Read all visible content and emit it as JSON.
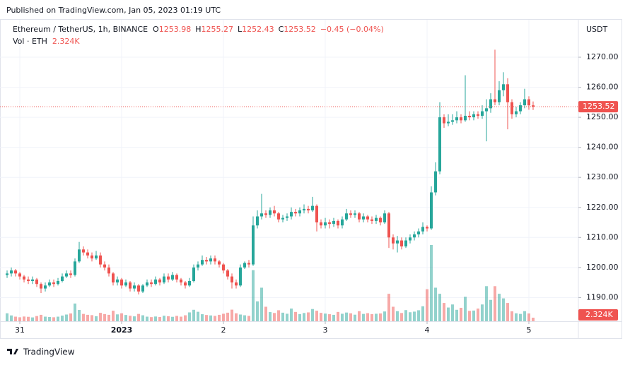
{
  "chart_data": {
    "type": "candlestick",
    "published": "Published on TradingView.com, Jan 05, 2023 01:19 UTC",
    "title": "Ethereum / TetherUS, 1h, BINANCE",
    "ohlc_labels": [
      "O",
      "H",
      "L",
      "C"
    ],
    "change": "−0.45 (−0.04%)",
    "volume_label": "Vol · ETH",
    "volume_value_label": "2.324K",
    "currency": "USDT",
    "brand": "TradingView",
    "up_color": "#26a69a",
    "down_color": "#ef5350",
    "grid": true,
    "xlim": [
      -1.67,
      134.67
    ],
    "ylim": [
      1182.1,
      1282.7
    ],
    "volume_ylim": [
      0,
      100000
    ],
    "xticks": [
      {
        "value": 3,
        "label": "31"
      },
      {
        "value": 27,
        "label": "2023"
      },
      {
        "value": 51,
        "label": "2"
      },
      {
        "value": 75,
        "label": "3"
      },
      {
        "value": 99,
        "label": "4"
      },
      {
        "value": 123,
        "label": "5"
      }
    ],
    "yticks": [
      {
        "value": 1190,
        "label": "1190.00"
      },
      {
        "value": 1200,
        "label": "1200.00"
      },
      {
        "value": 1210,
        "label": "1210.00"
      },
      {
        "value": 1220,
        "label": "1220.00"
      },
      {
        "value": 1230,
        "label": "1230.00"
      },
      {
        "value": 1240,
        "label": "1240.00"
      },
      {
        "value": 1250,
        "label": "1250.00"
      },
      {
        "value": 1260,
        "label": "1260.00"
      },
      {
        "value": 1270,
        "label": "1270.00"
      }
    ],
    "open": [
      1197.5,
      1198,
      1199,
      1198,
      1197,
      1196,
      1195.5,
      1196,
      1194.5,
      1193,
      1194,
      1195,
      1194.5,
      1195.5,
      1197,
      1198,
      1197.5,
      1202,
      1206,
      1205,
      1204,
      1203,
      1204,
      1201,
      1200,
      1198,
      1195,
      1196,
      1194,
      1195,
      1193,
      1194,
      1192,
      1194,
      1195,
      1194.5,
      1196,
      1195,
      1197,
      1196,
      1197.5,
      1196,
      1195,
      1194,
      1195.5,
      1200,
      1201,
      1202.5,
      1202,
      1203,
      1202,
      1201,
      1199,
      1197,
      1195,
      1194,
      1200,
      1201.5,
      1201,
      1214,
      1217,
      1218,
      1217.5,
      1219,
      1218,
      1216,
      1216.5,
      1217,
      1218.5,
      1218,
      1219,
      1219.5,
      1219,
      1220.5,
      1215,
      1214,
      1215,
      1214.5,
      1215.5,
      1214,
      1216,
      1218,
      1217.5,
      1218,
      1216,
      1217,
      1216,
      1215.5,
      1216.5,
      1215,
      1218,
      1210,
      1208,
      1209,
      1207,
      1209,
      1210,
      1211,
      1212,
      1213.5,
      1213,
      1225,
      1232,
      1250,
      1248,
      1248.5,
      1249,
      1250,
      1249,
      1250.5,
      1250,
      1251,
      1250.5,
      1252,
      1253,
      1256,
      1255,
      1259,
      1261,
      1255,
      1251,
      1252,
      1254,
      1256,
      1253.98
    ],
    "high": [
      1199,
      1200,
      1199.5,
      1198.5,
      1197.5,
      1197,
      1197,
      1196.5,
      1195,
      1195,
      1196,
      1196,
      1196.5,
      1198,
      1199,
      1199,
      1203,
      1208.5,
      1207,
      1206,
      1205,
      1205.5,
      1205,
      1202,
      1201,
      1198.5,
      1197,
      1196.5,
      1196,
      1195.5,
      1195,
      1194.5,
      1194.5,
      1196,
      1196,
      1197,
      1196.5,
      1198,
      1198,
      1198.5,
      1198,
      1196.5,
      1195.5,
      1196.5,
      1201,
      1202,
      1204,
      1203.5,
      1204,
      1204,
      1202.5,
      1201.5,
      1199.5,
      1198,
      1196,
      1201,
      1202,
      1202.5,
      1217,
      1219,
      1224.5,
      1219,
      1220,
      1220.5,
      1218.5,
      1217.5,
      1218,
      1220,
      1219.5,
      1220,
      1221,
      1220.5,
      1223.5,
      1221,
      1216,
      1216.5,
      1216,
      1216.5,
      1216,
      1217,
      1219.5,
      1219,
      1219,
      1218.5,
      1218,
      1217.5,
      1217,
      1217.5,
      1217,
      1219,
      1218.5,
      1211,
      1210.5,
      1210,
      1210,
      1211,
      1212,
      1213,
      1215,
      1214,
      1227,
      1235,
      1255,
      1251,
      1251,
      1251,
      1252,
      1251,
      1264,
      1252,
      1252,
      1252,
      1254,
      1256,
      1258,
      1272.5,
      1262,
      1265,
      1263,
      1256,
      1253.5,
      1255,
      1259.5,
      1257,
      1255.27
    ],
    "low": [
      1196.5,
      1197,
      1197,
      1196,
      1195,
      1194.5,
      1194.5,
      1193.5,
      1191.5,
      1192,
      1193.5,
      1193.5,
      1194,
      1195,
      1196.5,
      1196.5,
      1197,
      1201.5,
      1204,
      1203,
      1202,
      1202.5,
      1200,
      1199,
      1197,
      1194,
      1194,
      1193,
      1193.5,
      1192,
      1192,
      1191,
      1191.5,
      1193.5,
      1193.5,
      1194,
      1194,
      1194.5,
      1195,
      1195.5,
      1195,
      1194,
      1193,
      1193.5,
      1195,
      1199,
      1200.5,
      1201,
      1201,
      1201,
      1200,
      1198,
      1196,
      1193,
      1193,
      1193.5,
      1199.5,
      1200,
      1200.5,
      1213,
      1216,
      1216.5,
      1216.5,
      1217,
      1215,
      1215,
      1215.5,
      1216,
      1217,
      1217,
      1218,
      1218,
      1218.5,
      1212,
      1213,
      1213,
      1213,
      1213.5,
      1213,
      1213,
      1215.5,
      1216.5,
      1216.5,
      1215,
      1215,
      1215,
      1214.5,
      1214.5,
      1214,
      1214.5,
      1206.5,
      1206,
      1205,
      1206,
      1206.5,
      1208,
      1209,
      1210,
      1211,
      1212,
      1212.5,
      1224,
      1231,
      1246.5,
      1247,
      1247.5,
      1248,
      1248,
      1248.5,
      1249,
      1249,
      1249.5,
      1249.5,
      1242,
      1251.5,
      1254,
      1254,
      1257,
      1246,
      1249.5,
      1250,
      1251,
      1253,
      1252.5,
      1252.43
    ],
    "close": [
      1198,
      1199,
      1198,
      1197,
      1196,
      1195.5,
      1196,
      1194.5,
      1193,
      1194,
      1195,
      1194.5,
      1195.5,
      1197,
      1198,
      1197.5,
      1202,
      1206,
      1205,
      1204,
      1203,
      1204,
      1201,
      1200,
      1198,
      1195,
      1196,
      1194,
      1195,
      1193,
      1194,
      1192,
      1194,
      1195,
      1194.5,
      1196,
      1195,
      1197,
      1196,
      1197.5,
      1196,
      1195,
      1194,
      1195.5,
      1200,
      1201,
      1202.5,
      1202,
      1203,
      1202,
      1201,
      1199,
      1197,
      1195,
      1194,
      1200,
      1201.5,
      1201,
      1214,
      1217,
      1218,
      1217.5,
      1219,
      1218,
      1216,
      1216.5,
      1217,
      1218.5,
      1218,
      1219,
      1219.5,
      1219,
      1220.5,
      1215,
      1214,
      1215,
      1214.5,
      1215.5,
      1214,
      1216,
      1218,
      1217.5,
      1218,
      1216,
      1217,
      1216,
      1215.5,
      1216.5,
      1215,
      1218,
      1210,
      1208,
      1209,
      1207,
      1209,
      1210,
      1211,
      1212,
      1213.5,
      1213,
      1225,
      1232,
      1250,
      1248,
      1248.5,
      1249,
      1250,
      1249,
      1250.5,
      1250,
      1251,
      1250.5,
      1252,
      1253,
      1256,
      1255,
      1259,
      1261,
      1255,
      1251,
      1252,
      1254,
      1256,
      1253.98,
      1253.52
    ],
    "volume": [
      5200,
      3800,
      3000,
      2600,
      3100,
      2900,
      2500,
      3400,
      4200,
      3000,
      2800,
      2600,
      3000,
      3700,
      4400,
      5100,
      11600,
      7400,
      4800,
      4200,
      4000,
      3300,
      5500,
      4700,
      4200,
      6900,
      4500,
      5200,
      4100,
      3600,
      3200,
      4800,
      3900,
      3000,
      2700,
      3100,
      2800,
      3600,
      3300,
      2900,
      3500,
      3000,
      3900,
      5800,
      7500,
      6200,
      4600,
      4100,
      3800,
      3500,
      4200,
      4900,
      5600,
      7600,
      5200,
      4400,
      3900,
      3500,
      33500,
      13000,
      22000,
      9500,
      6000,
      5400,
      7200,
      5600,
      4900,
      8300,
      6100,
      4700,
      5400,
      5800,
      8000,
      6900,
      5500,
      5000,
      4600,
      4200,
      6100,
      4900,
      5700,
      5200,
      4300,
      6600,
      4800,
      5300,
      4700,
      4900,
      5100,
      6400,
      18000,
      9500,
      6600,
      5400,
      7300,
      5900,
      6300,
      7200,
      9800,
      21000,
      50000,
      22000,
      18000,
      12000,
      9000,
      11000,
      7500,
      8800,
      16000,
      6800,
      7000,
      8300,
      11000,
      23000,
      14000,
      23000,
      18000,
      15000,
      12000,
      6500,
      5200,
      4800,
      6600,
      5100,
      2324
    ]
  }
}
